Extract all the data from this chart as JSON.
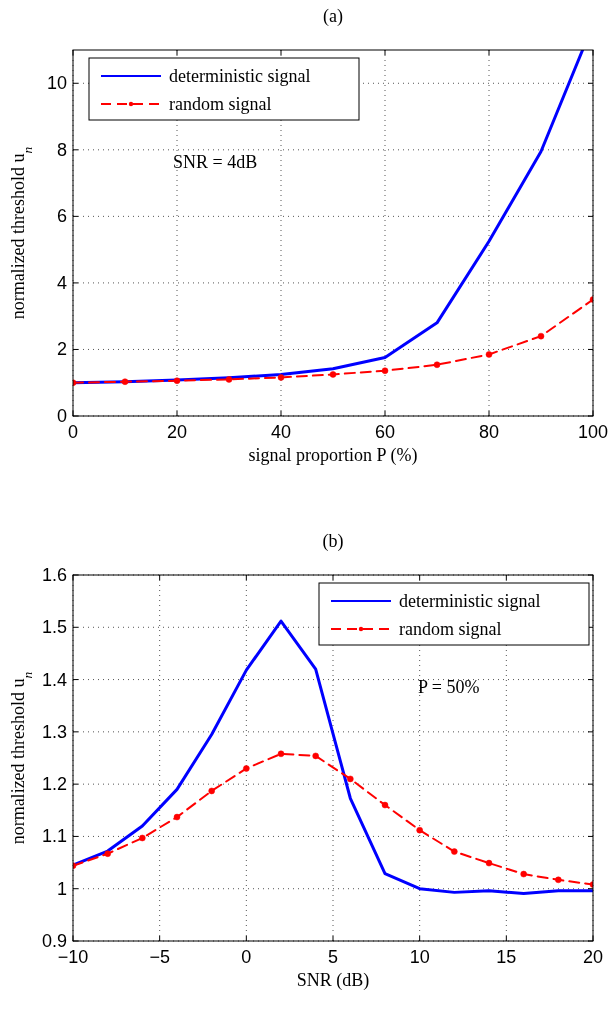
{
  "chart_data": [
    {
      "type": "line",
      "title": "(a)",
      "xlabel": "signal proportion P (%)",
      "ylabel": "normalized threshold u$_{n}$",
      "xlim": [
        0,
        100
      ],
      "ylim": [
        0,
        11
      ],
      "xticks": [
        0,
        20,
        40,
        60,
        80,
        100
      ],
      "yticks": [
        0,
        2,
        4,
        6,
        8,
        10
      ],
      "grid": true,
      "legend": "top left",
      "annotations": [
        "SNR = 4dB"
      ],
      "series": [
        {
          "name": "deterministic signal",
          "color": "#0000ff",
          "line_style": "solid",
          "marker": "none",
          "x": [
            0,
            10,
            20,
            30,
            40,
            50,
            60,
            70,
            80,
            90,
            98
          ],
          "values": [
            1,
            1.03,
            1.08,
            1.15,
            1.25,
            1.42,
            1.76,
            2.8,
            5.25,
            7.95,
            11
          ]
        },
        {
          "name": "random signal",
          "color": "#ff0000",
          "line_style": "dashed",
          "marker": "circle",
          "x": [
            0,
            10,
            20,
            30,
            40,
            50,
            60,
            70,
            80,
            90,
            100
          ],
          "values": [
            1,
            1.03,
            1.06,
            1.1,
            1.16,
            1.25,
            1.36,
            1.54,
            1.85,
            2.4,
            3.5
          ]
        }
      ]
    },
    {
      "type": "line",
      "title": "(b)",
      "xlabel": "SNR (dB)",
      "ylabel": "normalized threshold u$_{n}$",
      "xlim": [
        -10,
        20
      ],
      "ylim": [
        0.9,
        1.6
      ],
      "xticks": [
        {
          "value": -10,
          "label": "−10"
        },
        {
          "value": -5,
          "label": "−5"
        },
        0,
        5,
        10,
        15,
        20
      ],
      "yticks": [
        {
          "value": 0.9,
          "label": "0.9"
        },
        1,
        1.1,
        1.2,
        1.3,
        1.4,
        1.5,
        1.6
      ],
      "grid": true,
      "legend": "top right",
      "annotations": [
        "P = 50%"
      ],
      "series": [
        {
          "name": "deterministic signal",
          "color": "#0000ff",
          "line_style": "solid",
          "marker": "none",
          "x": [
            -10,
            -8,
            -6,
            -4,
            -2,
            0,
            2,
            4,
            6,
            8,
            10,
            12,
            14,
            16,
            18,
            20
          ],
          "values": [
            1.045,
            1.072,
            1.12,
            1.19,
            1.295,
            1.418,
            1.512,
            1.42,
            1.173,
            1.029,
            1.0,
            0.993,
            0.996,
            0.991,
            0.996,
            0.996
          ]
        },
        {
          "name": "random signal",
          "color": "#ff0000",
          "line_style": "dashed",
          "marker": "circle",
          "x": [
            -10,
            -8,
            -6,
            -4,
            -2,
            0,
            2,
            4,
            6,
            8,
            10,
            12,
            14,
            16,
            18,
            20
          ],
          "values": [
            1.044,
            1.067,
            1.097,
            1.137,
            1.187,
            1.23,
            1.258,
            1.254,
            1.21,
            1.16,
            1.112,
            1.071,
            1.049,
            1.028,
            1.017,
            1.008
          ]
        }
      ]
    }
  ]
}
